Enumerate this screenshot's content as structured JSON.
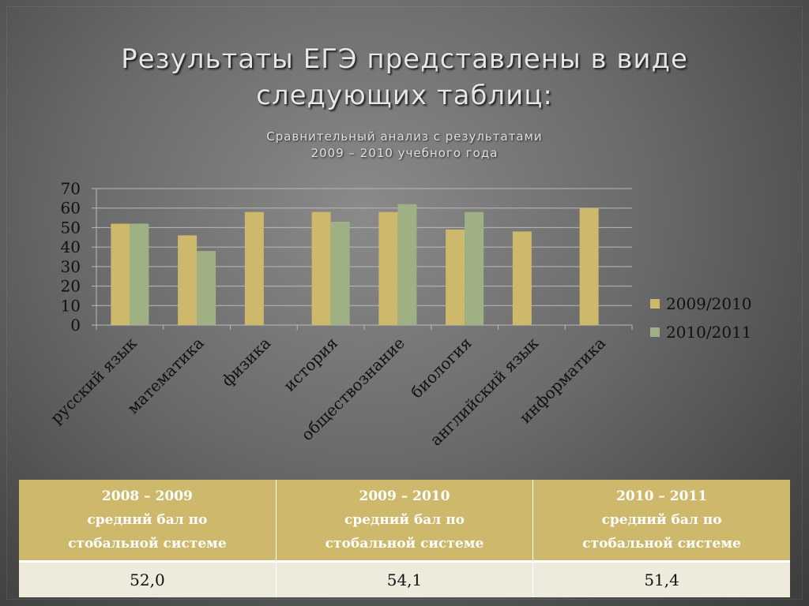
{
  "title": "Результаты ЕГЭ представлены в виде следующих таблиц:",
  "subtitle_line1": "Сравнительный анализ с результатами",
  "subtitle_line2": "2009 – 2010 учебного года",
  "colors": {
    "series_2009_2010": "#cdb86b",
    "series_2010_2011": "#9fb184",
    "gridline": "#b9b9b9",
    "table_header": "#cdb86b",
    "table_cell": "#eeeadc"
  },
  "chart_data": {
    "type": "bar",
    "categories": [
      "русский язык",
      "математика",
      "физика",
      "история",
      "обществознание",
      "биология",
      "английский язык",
      "информатика"
    ],
    "series": [
      {
        "name": "2009/2010",
        "values": [
          52,
          46,
          58,
          58,
          58,
          49,
          48,
          60
        ]
      },
      {
        "name": "2010/2011",
        "values": [
          52,
          38,
          null,
          53,
          62,
          58,
          null,
          null
        ]
      }
    ],
    "ylim": [
      0,
      70
    ],
    "yticks": [
      "0",
      "10",
      "20",
      "30",
      "40",
      "50",
      "60",
      "70"
    ],
    "grid": true,
    "legend": "right"
  },
  "table": {
    "headers": [
      {
        "years": "2008 – 2009",
        "line2": "средний бал по",
        "line3": "стобальной системе"
      },
      {
        "years": "2009 – 2010",
        "line2": "средний бал по",
        "line3": "стобальной системе"
      },
      {
        "years": "2010 – 2011",
        "line2": "средний бал по",
        "line3": "стобальной системе"
      }
    ],
    "values": [
      "52,0",
      "54,1",
      "51,4"
    ]
  }
}
